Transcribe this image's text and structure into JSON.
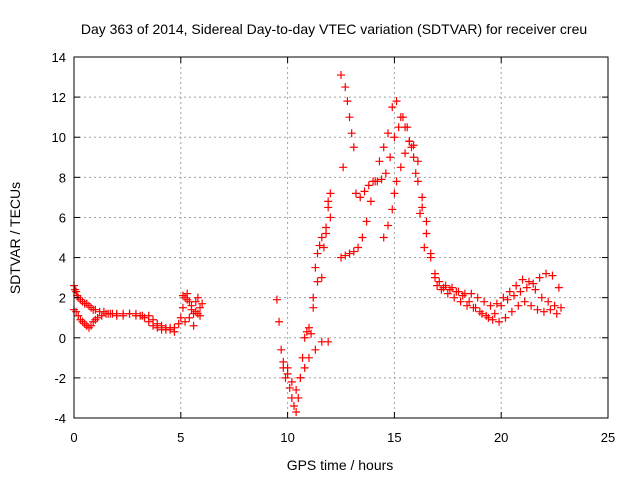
{
  "chart_data": {
    "type": "scatter",
    "title": "Day 363 of 2014, Sidereal Day-to-day VTEC variation (SDTVAR) for receiver creu",
    "xlabel": "GPS time / hours",
    "ylabel": "SDTVAR / TECUs",
    "xlim": [
      0,
      25
    ],
    "ylim": [
      -4,
      14
    ],
    "x_ticks": [
      "0",
      "5",
      "10",
      "15",
      "20",
      "25"
    ],
    "y_ticks": [
      "-4",
      "-2",
      "0",
      "2",
      "4",
      "6",
      "8",
      "10",
      "12",
      "14"
    ],
    "grid": true,
    "marker": "+",
    "color": "#ff0000",
    "series": [
      {
        "name": "receiver creu",
        "x": [
          0.0,
          0.05,
          0.1,
          0.15,
          0.2,
          0.3,
          0.4,
          0.5,
          0.6,
          0.7,
          0.8,
          0.9,
          1.0,
          1.2,
          1.4,
          1.6,
          1.8,
          2.0,
          2.3,
          2.6,
          2.9,
          3.2,
          3.5,
          3.7,
          3.9,
          4.1,
          4.3,
          4.5,
          4.7,
          4.9,
          0.0,
          0.1,
          0.2,
          0.3,
          0.4,
          0.5,
          0.6,
          0.7,
          0.8,
          0.9,
          1.0,
          1.1,
          1.3,
          1.5,
          1.7,
          2.0,
          2.3,
          2.6,
          2.9,
          3.1,
          3.3,
          3.5,
          3.7,
          3.9,
          4.1,
          4.3,
          4.5,
          4.7,
          5.0,
          5.1,
          5.2,
          5.3,
          5.4,
          5.5,
          5.6,
          5.7,
          5.8,
          5.9,
          6.0,
          5.2,
          5.4,
          5.6,
          5.8,
          5.1,
          5.3,
          5.5,
          5.7,
          5.9,
          9.5,
          9.6,
          9.7,
          9.8,
          9.9,
          10.0,
          10.1,
          10.2,
          10.3,
          10.4,
          10.5,
          10.6,
          10.7,
          10.8,
          10.9,
          11.0,
          9.8,
          10.0,
          10.2,
          10.4,
          10.6,
          10.8,
          11.0,
          11.1,
          11.2,
          11.3,
          11.4,
          11.5,
          11.6,
          11.7,
          11.8,
          11.9,
          12.0,
          11.2,
          11.4,
          11.6,
          11.8,
          12.0,
          11.3,
          11.6,
          11.9,
          11.9,
          12.6,
          12.5,
          12.7,
          12.8,
          12.9,
          13.0,
          13.1,
          12.5,
          12.7,
          12.9,
          13.1,
          13.3,
          13.5,
          13.7,
          13.9,
          14.1,
          14.3,
          14.5,
          14.7,
          14.9,
          15.1,
          15.3,
          15.5,
          15.7,
          15.9,
          16.1,
          16.3,
          16.5,
          16.7,
          16.9,
          13.2,
          13.4,
          13.6,
          13.8,
          14.0,
          14.2,
          14.4,
          14.6,
          14.8,
          15.0,
          15.2,
          15.4,
          15.6,
          15.8,
          16.0,
          16.2,
          16.4,
          14.5,
          14.7,
          14.9,
          15.0,
          15.1,
          15.3,
          15.5,
          15.7,
          15.9,
          16.1,
          16.3,
          16.5,
          16.7,
          16.9,
          17.0,
          17.3,
          17.6,
          17.9,
          18.2,
          18.5,
          18.8,
          19.1,
          19.4,
          19.7,
          20.0,
          20.3,
          20.6,
          20.9,
          21.2,
          21.5,
          21.8,
          22.1,
          22.4,
          22.7,
          17.2,
          17.5,
          17.8,
          18.1,
          18.4,
          18.7,
          19.0,
          19.3,
          19.6,
          19.9,
          20.2,
          20.5,
          20.8,
          21.1,
          21.4,
          21.7,
          22.0,
          22.3,
          22.6,
          17.1,
          17.4,
          17.7,
          18.0,
          18.3,
          18.6,
          18.9,
          19.2,
          19.5,
          19.8,
          20.1,
          20.4,
          20.7,
          21.0,
          21.3,
          21.6,
          21.9,
          22.2,
          22.5,
          22.8
        ],
        "y": [
          2.6,
          2.4,
          2.3,
          2.1,
          2.0,
          1.9,
          1.8,
          1.7,
          1.7,
          1.6,
          1.5,
          1.4,
          1.4,
          1.3,
          1.3,
          1.2,
          1.2,
          1.2,
          1.2,
          1.2,
          1.1,
          1.1,
          1.1,
          0.9,
          0.7,
          0.6,
          0.5,
          0.4,
          0.5,
          0.7,
          1.4,
          1.3,
          1.1,
          0.9,
          0.8,
          0.7,
          0.6,
          0.5,
          0.6,
          0.8,
          0.9,
          1.0,
          1.1,
          1.2,
          1.2,
          1.1,
          1.1,
          1.2,
          1.2,
          1.1,
          1.0,
          0.8,
          0.6,
          0.5,
          0.4,
          0.4,
          0.5,
          0.3,
          1.0,
          1.5,
          2.0,
          2.2,
          1.8,
          1.4,
          1.2,
          1.8,
          2.0,
          1.5,
          1.7,
          0.8,
          1.0,
          0.6,
          1.2,
          2.1,
          1.9,
          1.6,
          1.3,
          1.1,
          1.9,
          0.8,
          -0.6,
          -1.5,
          -2.0,
          -1.8,
          -2.5,
          -3.0,
          -3.4,
          -3.7,
          -3.0,
          -2.0,
          -1.0,
          0.0,
          0.3,
          0.5,
          -1.2,
          -1.5,
          -2.2,
          -2.6,
          -2.0,
          -1.5,
          -1.0,
          0.2,
          2.0,
          3.5,
          4.2,
          4.6,
          5.0,
          4.5,
          5.5,
          6.5,
          7.2,
          1.5,
          2.8,
          3.0,
          5.2,
          6.0,
          -0.6,
          -0.2,
          6.8,
          -0.2,
          8.5,
          13.1,
          12.5,
          11.8,
          11.0,
          10.2,
          9.5,
          4.0,
          4.1,
          4.2,
          4.3,
          4.5,
          5.0,
          5.8,
          6.8,
          7.8,
          8.8,
          9.5,
          10.2,
          11.5,
          11.8,
          11.0,
          10.5,
          9.8,
          9.0,
          7.8,
          6.5,
          5.2,
          4.2,
          3.2,
          7.2,
          7.0,
          7.3,
          7.6,
          7.8,
          7.8,
          7.9,
          8.2,
          9.0,
          10.0,
          10.5,
          11.0,
          10.5,
          9.5,
          8.2,
          6.2,
          4.5,
          5.0,
          5.6,
          6.4,
          7.2,
          7.8,
          8.5,
          9.2,
          9.8,
          9.6,
          8.8,
          7.0,
          5.8,
          4.0,
          3.0,
          2.6,
          2.5,
          2.4,
          2.3,
          2.1,
          1.8,
          1.5,
          1.2,
          1.0,
          1.2,
          1.6,
          1.9,
          2.1,
          2.3,
          2.5,
          2.7,
          3.0,
          3.2,
          3.1,
          2.5,
          2.4,
          2.2,
          2.0,
          1.8,
          1.6,
          1.5,
          1.3,
          1.1,
          0.9,
          0.8,
          1.0,
          1.3,
          1.6,
          1.8,
          1.6,
          1.4,
          1.3,
          1.4,
          1.2,
          2.8,
          2.6,
          2.5,
          2.3,
          2.2,
          2.2,
          2.0,
          1.8,
          1.6,
          1.7,
          2.0,
          2.3,
          2.6,
          2.9,
          2.8,
          2.4,
          2.0,
          1.8,
          1.6,
          1.5
        ]
      }
    ]
  }
}
